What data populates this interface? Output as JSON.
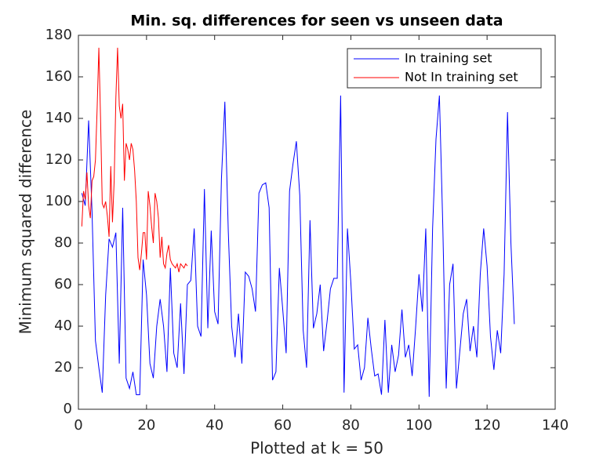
{
  "chart_data": {
    "type": "line",
    "title": "Min. sq. differences for seen vs unseen data",
    "x_label": "Plotted at k = 50",
    "y_label": "Minimum squared difference",
    "xlim": [
      0,
      140
    ],
    "ylim": [
      0,
      180
    ],
    "xticks": [
      0,
      20,
      40,
      60,
      80,
      100,
      120,
      140
    ],
    "yticks": [
      0,
      20,
      40,
      60,
      80,
      100,
      120,
      140,
      160,
      180
    ],
    "legend": "northeast",
    "series": [
      {
        "name": "In training set",
        "color": "#0000ff",
        "x": [
          1,
          2,
          3,
          4,
          5,
          6,
          7,
          8,
          9,
          10,
          11,
          12,
          13,
          14,
          15,
          16,
          17,
          18,
          19,
          20,
          21,
          22,
          23,
          24,
          25,
          26,
          27,
          28,
          29,
          30,
          31,
          32,
          33,
          34,
          35,
          36,
          37,
          38,
          39,
          40,
          41,
          42,
          43,
          44,
          45,
          46,
          47,
          48,
          49,
          50,
          51,
          52,
          53,
          54,
          55,
          56,
          57,
          58,
          59,
          60,
          61,
          62,
          63,
          64,
          65,
          66,
          67,
          68,
          69,
          70,
          71,
          72,
          73,
          74,
          75,
          76,
          77,
          78,
          79,
          80,
          81,
          82,
          83,
          84,
          85,
          86,
          87,
          88,
          89,
          90,
          91,
          92,
          93,
          94,
          95,
          96,
          97,
          98,
          99,
          100,
          101,
          102,
          103,
          104,
          105,
          106,
          107,
          108,
          109,
          110,
          111,
          112,
          113,
          114,
          115,
          116,
          117,
          118,
          119,
          120,
          121,
          122,
          123,
          124,
          125,
          126,
          127,
          128
        ],
        "values": [
          104,
          98,
          139,
          95,
          33,
          20,
          8,
          55,
          82,
          78,
          85,
          22,
          97,
          15,
          10,
          18,
          7,
          7,
          72,
          55,
          22,
          15,
          40,
          53,
          40,
          18,
          68,
          27,
          20,
          51,
          17,
          60,
          62,
          87,
          40,
          35,
          106,
          39,
          86,
          47,
          41,
          111,
          148,
          86,
          40,
          25,
          46,
          22,
          66,
          64,
          58,
          47,
          104,
          108,
          109,
          97,
          14,
          18,
          68,
          48,
          27,
          105,
          118,
          129,
          103,
          38,
          20,
          91,
          39,
          46,
          60,
          28,
          42,
          58,
          63,
          63,
          151,
          8,
          87,
          61,
          29,
          31,
          14,
          20,
          44,
          29,
          16,
          17,
          7,
          43,
          8,
          31,
          18,
          26,
          48,
          25,
          31,
          16,
          39,
          65,
          47,
          87,
          6,
          87,
          130,
          151,
          88,
          10,
          60,
          70,
          10,
          28,
          46,
          53,
          28,
          40,
          25,
          65,
          87,
          69,
          35,
          19,
          38,
          27,
          65,
          143,
          80,
          41
        ]
      },
      {
        "name": "Not In training set",
        "color": "#ff0000",
        "x": [
          1,
          1.5,
          2,
          2.5,
          3,
          3.5,
          4,
          4.5,
          5,
          5.5,
          6,
          6.5,
          7,
          7.5,
          8,
          8.5,
          9,
          9.5,
          10,
          10.5,
          11,
          11.5,
          12,
          12.5,
          13,
          13.5,
          14,
          14.5,
          15,
          15.5,
          16,
          16.5,
          17,
          17.5,
          18,
          18.5,
          19,
          19.5,
          20,
          20.5,
          21,
          21.5,
          22,
          22.5,
          23,
          23.5,
          24,
          24.5,
          25,
          25.5,
          26,
          26.5,
          27,
          27.5,
          28,
          28.5,
          29,
          29.5,
          30,
          30.5,
          31,
          31.5,
          32
        ],
        "values": [
          88,
          105,
          101,
          114,
          98,
          92,
          110,
          112,
          120,
          145,
          174,
          140,
          99,
          97,
          100,
          93,
          83,
          117,
          90,
          110,
          150,
          174,
          146,
          140,
          147,
          110,
          128,
          125,
          120,
          128,
          125,
          115,
          100,
          73,
          67,
          75,
          85,
          85,
          72,
          105,
          98,
          88,
          80,
          104,
          100,
          92,
          73,
          83,
          70,
          68,
          75,
          79,
          72,
          70,
          69,
          68,
          70,
          66,
          70,
          69,
          68,
          70,
          69
        ]
      }
    ]
  }
}
